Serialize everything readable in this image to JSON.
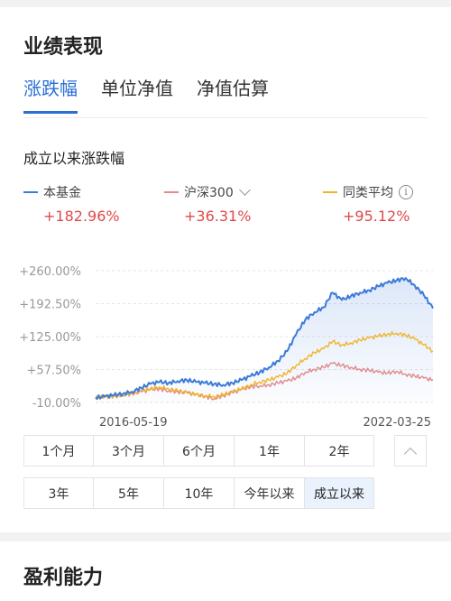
{
  "performance": {
    "title": "业绩表现",
    "tabs": [
      {
        "label": "涨跌幅",
        "active": true
      },
      {
        "label": "单位净值",
        "active": false
      },
      {
        "label": "净值估算",
        "active": false
      }
    ],
    "subtitle": "成立以来涨跌幅",
    "legend": [
      {
        "name": "本基金",
        "value": "+182.96%",
        "color": "#3d7bd9"
      },
      {
        "name": "沪深300",
        "value": "+36.31%",
        "color": "#e08a8a"
      },
      {
        "name": "同类平均",
        "value": "+95.12%",
        "color": "#f0b429"
      }
    ],
    "info_icon": "i",
    "ranges_row1": [
      "1个月",
      "3个月",
      "6个月",
      "1年",
      "2年"
    ],
    "ranges_row2": [
      "3年",
      "5年",
      "10年",
      "今年以来",
      "成立以来"
    ],
    "selected_range": "成立以来"
  },
  "chart_data": {
    "type": "line",
    "x_start": "2016-05-19",
    "x_end": "2022-03-25",
    "y_ticks": [
      "+260.00%",
      "+192.50%",
      "+125.00%",
      "+57.50%",
      "-10.00%"
    ],
    "ylim": [
      -10,
      260
    ],
    "x_tick_labels": [
      "2016-05-19",
      "2022-03-25"
    ],
    "series": [
      {
        "name": "本基金",
        "color": "#3d7bd9",
        "area": true,
        "values": [
          0,
          2,
          5,
          8,
          12,
          20,
          28,
          32,
          30,
          34,
          36,
          32,
          30,
          28,
          26,
          30,
          36,
          44,
          52,
          62,
          75,
          95,
          130,
          160,
          175,
          185,
          215,
          200,
          208,
          215,
          220,
          228,
          235,
          240,
          245,
          230,
          210,
          183
        ]
      },
      {
        "name": "沪深300",
        "color": "#e08a8a",
        "area": false,
        "values": [
          0,
          1,
          3,
          5,
          8,
          12,
          16,
          18,
          14,
          12,
          10,
          6,
          2,
          -2,
          4,
          10,
          16,
          22,
          24,
          26,
          30,
          34,
          40,
          52,
          58,
          62,
          70,
          66,
          62,
          58,
          56,
          52,
          50,
          54,
          48,
          44,
          40,
          36
        ]
      },
      {
        "name": "同类平均",
        "color": "#f0b429",
        "area": false,
        "values": [
          0,
          2,
          4,
          6,
          9,
          14,
          18,
          22,
          18,
          14,
          10,
          6,
          4,
          2,
          6,
          12,
          18,
          26,
          32,
          36,
          42,
          50,
          66,
          80,
          92,
          100,
          115,
          108,
          112,
          118,
          122,
          126,
          130,
          132,
          128,
          120,
          108,
          95
        ]
      }
    ]
  },
  "profit": {
    "title": "盈利能力"
  }
}
